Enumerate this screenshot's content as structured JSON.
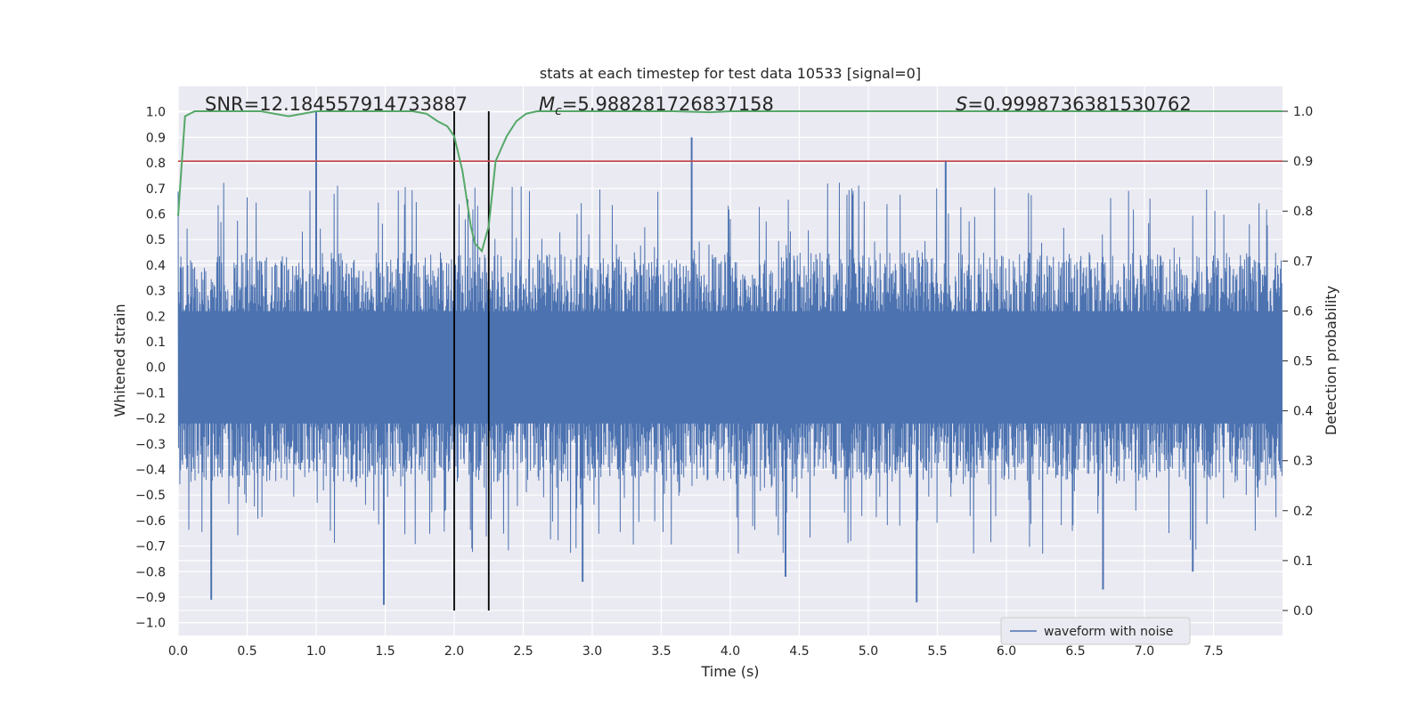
{
  "chart_data": {
    "type": "line",
    "title": "stats at each timestep for test data 10533 [signal=0]",
    "xlabel": "Time (s)",
    "ylabel_left": "Whitened strain",
    "ylabel_right": "Detection probability",
    "xlim": [
      0,
      8
    ],
    "ylim_left": [
      -1.05,
      1.1
    ],
    "ylim_right": [
      -0.05,
      1.05
    ],
    "x_ticks": [
      "0.0",
      "0.5",
      "1.0",
      "1.5",
      "2.0",
      "2.5",
      "3.0",
      "3.5",
      "4.0",
      "4.5",
      "5.0",
      "5.5",
      "6.0",
      "6.5",
      "7.0",
      "7.5"
    ],
    "y_ticks_left": [
      "−1.0",
      "−0.9",
      "−0.8",
      "−0.7",
      "−0.6",
      "−0.5",
      "−0.4",
      "−0.3",
      "−0.2",
      "−0.1",
      "0.0",
      "0.1",
      "0.2",
      "0.3",
      "0.4",
      "0.5",
      "0.6",
      "0.7",
      "0.8",
      "0.9",
      "1.0"
    ],
    "y_ticks_right": [
      "0.0",
      "0.1",
      "0.2",
      "0.3",
      "0.4",
      "0.5",
      "0.6",
      "0.7",
      "0.8",
      "0.9",
      "1.0"
    ],
    "grid": true,
    "legend_position": "lower-right",
    "annotations": {
      "snr": "SNR=12.184557914733887",
      "mc_symbol": "M",
      "mc_sub": "c",
      "mc_value": "=5.988281726837158",
      "s_symbol": "S",
      "s_value": "=0.9998736381530762"
    },
    "vertical_lines_x": [
      2.0,
      2.25
    ],
    "threshold_right": 0.9,
    "series": [
      {
        "name": "waveform with noise",
        "axis": "left",
        "color": "#4c72b0",
        "envelope_approx": 0.45,
        "peaks": [
          {
            "x": 0.24,
            "y": -0.91
          },
          {
            "x": 1.0,
            "y": 1.0
          },
          {
            "x": 1.49,
            "y": -0.93
          },
          {
            "x": 2.93,
            "y": -0.84
          },
          {
            "x": 3.72,
            "y": 0.9
          },
          {
            "x": 4.4,
            "y": -0.82
          },
          {
            "x": 5.35,
            "y": -0.92
          },
          {
            "x": 5.56,
            "y": 0.81
          },
          {
            "x": 6.7,
            "y": -0.87
          },
          {
            "x": 7.35,
            "y": -0.8
          }
        ]
      },
      {
        "axis": "right",
        "color": "#55a868",
        "x": [
          0,
          0.05,
          0.12,
          0.3,
          0.6,
          0.8,
          0.9,
          1.0,
          1.2,
          1.5,
          1.7,
          1.8,
          1.88,
          1.95,
          2.0,
          2.06,
          2.12,
          2.15,
          2.2,
          2.25,
          2.3,
          2.38,
          2.45,
          2.52,
          2.6,
          2.8,
          3.2,
          3.6,
          3.85,
          4.0,
          4.5,
          5.0,
          6.0,
          7.0,
          8.0
        ],
        "values": [
          0.79,
          0.99,
          1.0,
          1.0,
          1.0,
          0.99,
          0.995,
          1.0,
          1.0,
          1.0,
          1.0,
          0.995,
          0.98,
          0.97,
          0.95,
          0.88,
          0.77,
          0.735,
          0.72,
          0.77,
          0.9,
          0.95,
          0.98,
          0.995,
          1.0,
          1.0,
          1.0,
          1.0,
          0.998,
          1.0,
          1.0,
          1.0,
          1.0,
          1.0,
          1.0
        ]
      }
    ]
  }
}
